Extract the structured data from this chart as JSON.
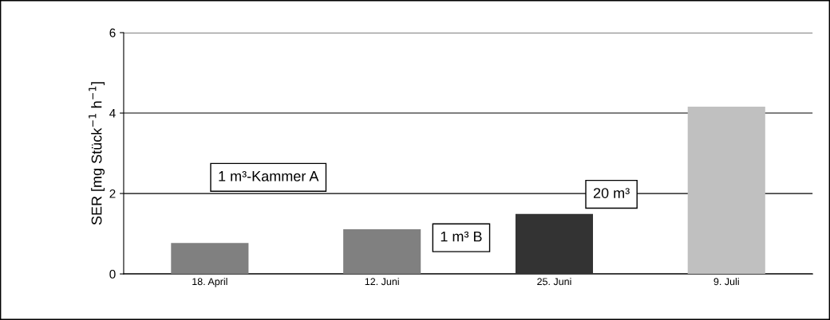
{
  "chart_data": {
    "type": "bar",
    "ylabel": "SER [mg Stück$^{−1}$ h$^{−1}$]",
    "categories": [
      "18. April",
      "12. Juni",
      "25. Juni",
      "9. Juli"
    ],
    "values": [
      0.77,
      1.11,
      1.49,
      4.16
    ],
    "colors": [
      "#808080",
      "#808080",
      "#333333",
      "#c0c0c0"
    ],
    "ylim": [
      0,
      6
    ],
    "yticks": [
      0,
      2,
      4,
      6
    ],
    "grid": "y",
    "legend": false,
    "annotations": [
      "1 m³-Kammer A",
      "1 m³ B",
      "20 m³"
    ]
  }
}
